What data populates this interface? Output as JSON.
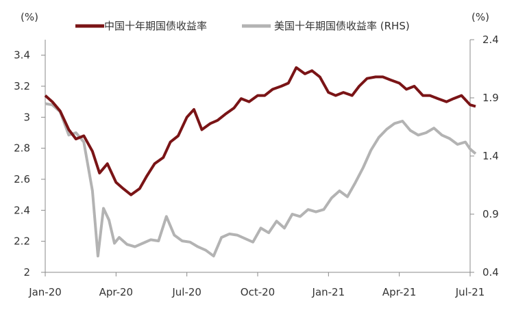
{
  "chart_data": {
    "type": "line",
    "left_unit": "(%)",
    "right_unit": "(%)",
    "x_ticks": [
      "Jan-20",
      "Apr-20",
      "Jul-20",
      "Oct-20",
      "Jan-21",
      "Apr-21",
      "Jul-21"
    ],
    "y_left": {
      "ticks": [
        "2",
        "2.2",
        "2.4",
        "2.6",
        "2.8",
        "3",
        "3.2",
        "3.4"
      ],
      "ylim": [
        2.0,
        3.5
      ]
    },
    "y_right": {
      "ticks": [
        "0.4",
        "0.9",
        "1.4",
        "1.9",
        "2.4"
      ],
      "ylim": [
        0.4,
        2.4
      ]
    },
    "grid": false,
    "legend_position": "top",
    "series": [
      {
        "name": "中国十年期国债收益率",
        "axis": "left",
        "color": "#7a1416",
        "points": [
          [
            "2020-01-01",
            3.14
          ],
          [
            "2020-01-10",
            3.1
          ],
          [
            "2020-01-20",
            3.04
          ],
          [
            "2020-02-01",
            2.92
          ],
          [
            "2020-02-10",
            2.86
          ],
          [
            "2020-02-20",
            2.88
          ],
          [
            "2020-03-01",
            2.78
          ],
          [
            "2020-03-10",
            2.64
          ],
          [
            "2020-03-20",
            2.7
          ],
          [
            "2020-04-01",
            2.58
          ],
          [
            "2020-04-10",
            2.54
          ],
          [
            "2020-04-20",
            2.5
          ],
          [
            "2020-05-01",
            2.54
          ],
          [
            "2020-05-10",
            2.62
          ],
          [
            "2020-05-20",
            2.7
          ],
          [
            "2020-06-01",
            2.74
          ],
          [
            "2020-06-10",
            2.84
          ],
          [
            "2020-06-20",
            2.88
          ],
          [
            "2020-07-01",
            3.0
          ],
          [
            "2020-07-10",
            3.05
          ],
          [
            "2020-07-20",
            2.92
          ],
          [
            "2020-08-01",
            2.96
          ],
          [
            "2020-08-10",
            2.98
          ],
          [
            "2020-08-20",
            3.02
          ],
          [
            "2020-09-01",
            3.06
          ],
          [
            "2020-09-10",
            3.12
          ],
          [
            "2020-09-20",
            3.1
          ],
          [
            "2020-10-01",
            3.14
          ],
          [
            "2020-10-10",
            3.14
          ],
          [
            "2020-10-20",
            3.18
          ],
          [
            "2020-11-01",
            3.2
          ],
          [
            "2020-11-10",
            3.22
          ],
          [
            "2020-11-20",
            3.32
          ],
          [
            "2020-12-01",
            3.28
          ],
          [
            "2020-12-10",
            3.3
          ],
          [
            "2020-12-20",
            3.26
          ],
          [
            "2021-01-01",
            3.16
          ],
          [
            "2021-01-10",
            3.14
          ],
          [
            "2021-01-20",
            3.16
          ],
          [
            "2021-02-01",
            3.14
          ],
          [
            "2021-02-10",
            3.2
          ],
          [
            "2021-02-20",
            3.25
          ],
          [
            "2021-03-01",
            3.26
          ],
          [
            "2021-03-10",
            3.26
          ],
          [
            "2021-03-20",
            3.24
          ],
          [
            "2021-04-01",
            3.22
          ],
          [
            "2021-04-10",
            3.18
          ],
          [
            "2021-04-20",
            3.2
          ],
          [
            "2021-05-01",
            3.14
          ],
          [
            "2021-05-10",
            3.14
          ],
          [
            "2021-05-20",
            3.12
          ],
          [
            "2021-06-01",
            3.1
          ],
          [
            "2021-06-10",
            3.12
          ],
          [
            "2021-06-20",
            3.14
          ],
          [
            "2021-07-01",
            3.08
          ],
          [
            "2021-07-08",
            3.07
          ]
        ]
      },
      {
        "name": "美国十年期国债收益率 (RHS)",
        "axis": "right",
        "color": "#b3b3b3",
        "points": [
          [
            "2020-01-01",
            1.85
          ],
          [
            "2020-01-10",
            1.84
          ],
          [
            "2020-01-20",
            1.78
          ],
          [
            "2020-02-01",
            1.58
          ],
          [
            "2020-02-10",
            1.6
          ],
          [
            "2020-02-20",
            1.52
          ],
          [
            "2020-03-01",
            1.1
          ],
          [
            "2020-03-08",
            0.54
          ],
          [
            "2020-03-15",
            0.95
          ],
          [
            "2020-03-22",
            0.85
          ],
          [
            "2020-03-29",
            0.65
          ],
          [
            "2020-04-05",
            0.7
          ],
          [
            "2020-04-15",
            0.64
          ],
          [
            "2020-04-25",
            0.62
          ],
          [
            "2020-05-05",
            0.65
          ],
          [
            "2020-05-15",
            0.68
          ],
          [
            "2020-05-25",
            0.67
          ],
          [
            "2020-06-05",
            0.88
          ],
          [
            "2020-06-15",
            0.72
          ],
          [
            "2020-06-25",
            0.67
          ],
          [
            "2020-07-05",
            0.66
          ],
          [
            "2020-07-15",
            0.62
          ],
          [
            "2020-07-25",
            0.59
          ],
          [
            "2020-08-05",
            0.54
          ],
          [
            "2020-08-15",
            0.7
          ],
          [
            "2020-08-25",
            0.73
          ],
          [
            "2020-09-05",
            0.72
          ],
          [
            "2020-09-15",
            0.69
          ],
          [
            "2020-09-25",
            0.66
          ],
          [
            "2020-10-05",
            0.78
          ],
          [
            "2020-10-15",
            0.74
          ],
          [
            "2020-10-25",
            0.84
          ],
          [
            "2020-11-05",
            0.78
          ],
          [
            "2020-11-15",
            0.9
          ],
          [
            "2020-11-25",
            0.88
          ],
          [
            "2020-12-05",
            0.94
          ],
          [
            "2020-12-15",
            0.92
          ],
          [
            "2020-12-25",
            0.94
          ],
          [
            "2021-01-05",
            1.04
          ],
          [
            "2021-01-15",
            1.1
          ],
          [
            "2021-01-25",
            1.05
          ],
          [
            "2021-02-05",
            1.17
          ],
          [
            "2021-02-15",
            1.3
          ],
          [
            "2021-02-25",
            1.45
          ],
          [
            "2021-03-05",
            1.56
          ],
          [
            "2021-03-15",
            1.63
          ],
          [
            "2021-03-25",
            1.68
          ],
          [
            "2021-04-05",
            1.7
          ],
          [
            "2021-04-15",
            1.62
          ],
          [
            "2021-04-25",
            1.58
          ],
          [
            "2021-05-05",
            1.6
          ],
          [
            "2021-05-15",
            1.64
          ],
          [
            "2021-05-25",
            1.58
          ],
          [
            "2021-06-05",
            1.55
          ],
          [
            "2021-06-15",
            1.5
          ],
          [
            "2021-06-25",
            1.52
          ],
          [
            "2021-07-01",
            1.46
          ],
          [
            "2021-07-08",
            1.42
          ]
        ]
      }
    ]
  }
}
